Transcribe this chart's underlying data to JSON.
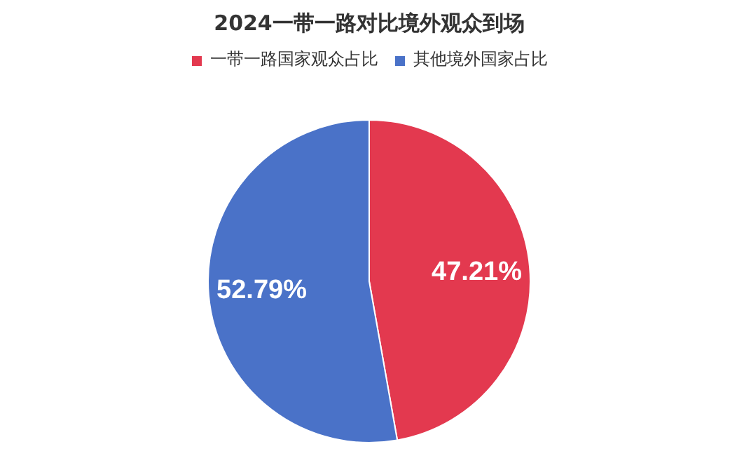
{
  "chart_data": {
    "type": "pie",
    "title": "2024一带一路对比境外观众到场",
    "categories": [
      "一带一路国家观众占比",
      "其他境外国家占比"
    ],
    "values": [
      47.21,
      52.79
    ],
    "colors": [
      "#e3394f",
      "#4a72c8"
    ],
    "value_labels": [
      "47.21%",
      "52.79%"
    ],
    "legend": "top"
  }
}
